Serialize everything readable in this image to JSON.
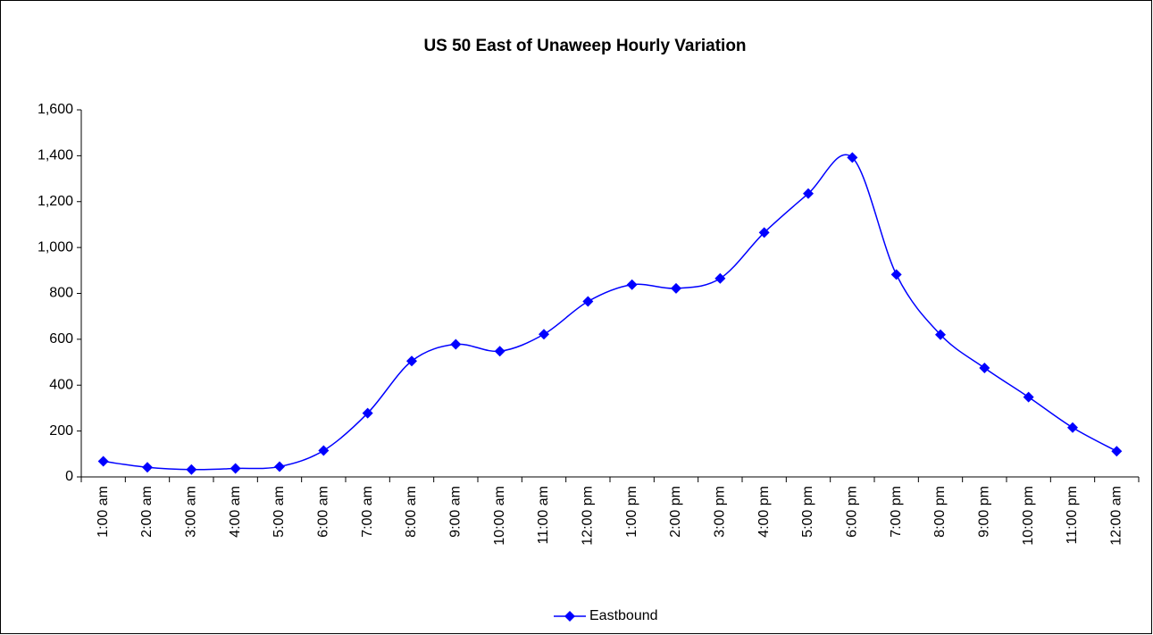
{
  "chart_data": {
    "type": "line",
    "title": "US 50 East of Unaweep Hourly Variation",
    "categories": [
      "1:00 am",
      "2:00 am",
      "3:00 am",
      "4:00 am",
      "5:00 am",
      "6:00 am",
      "7:00 am",
      "8:00 am",
      "9:00 am",
      "10:00 am",
      "11:00 am",
      "12:00 pm",
      "1:00 pm",
      "2:00 pm",
      "3:00 pm",
      "4:00 pm",
      "5:00 pm",
      "6:00 pm",
      "7:00 pm",
      "8:00 pm",
      "9:00 pm",
      "10:00 pm",
      "11:00 pm",
      "12:00 am"
    ],
    "series": [
      {
        "name": "Eastbound",
        "color": "#0000ff",
        "values": [
          68,
          42,
          32,
          37,
          45,
          115,
          278,
          505,
          578,
          548,
          622,
          765,
          838,
          822,
          865,
          1065,
          1235,
          1392,
          882,
          620,
          475,
          348,
          215,
          112
        ]
      }
    ],
    "ylim": [
      0,
      1600
    ],
    "yticks": [
      0,
      200,
      400,
      600,
      800,
      {
        "value": 1000,
        "label": "1,000"
      },
      {
        "value": 1200,
        "label": "1,200"
      },
      {
        "value": 1400,
        "label": "1,400"
      },
      {
        "value": 1600,
        "label": "1,600"
      }
    ],
    "smooth": true,
    "legend": "bottom"
  }
}
